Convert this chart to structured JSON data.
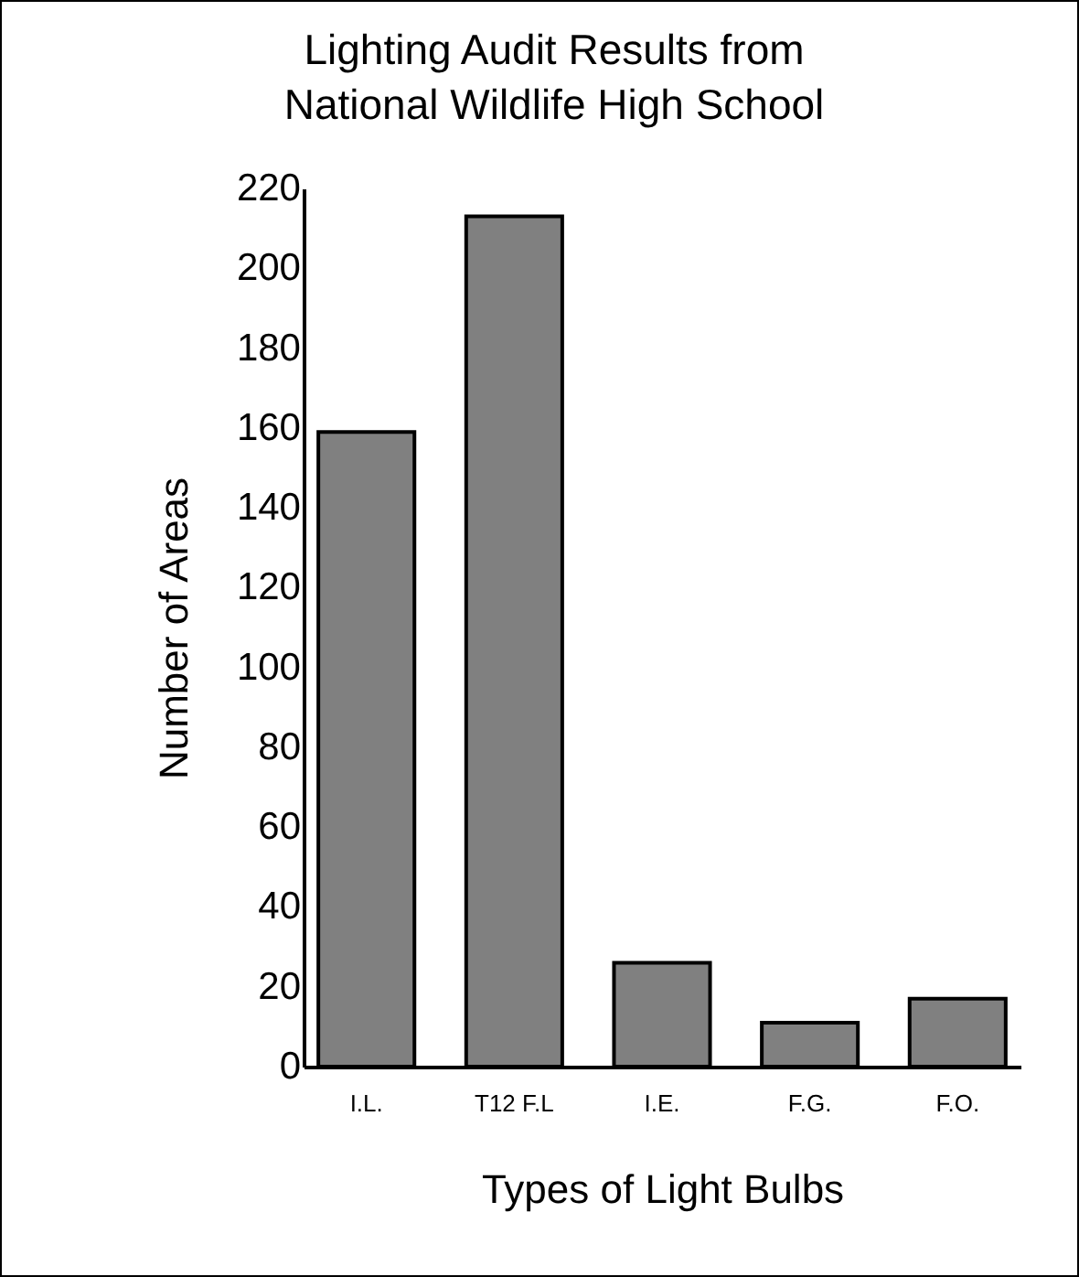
{
  "chart_data": {
    "type": "bar",
    "title": "Lighting Audit Results from\nNational Wildlife High School",
    "xlabel": "Types of Light Bulbs",
    "ylabel": "Number of Areas",
    "categories": [
      "I.L.",
      "T12 F.L",
      "I.E.",
      "F.G.",
      "F.O."
    ],
    "values": [
      159,
      213,
      26,
      11,
      17
    ],
    "color": "#808080",
    "ylim": [
      0,
      220
    ],
    "yticks": [
      0,
      20,
      40,
      60,
      80,
      100,
      120,
      140,
      160,
      180,
      200,
      220
    ],
    "grid": false
  }
}
